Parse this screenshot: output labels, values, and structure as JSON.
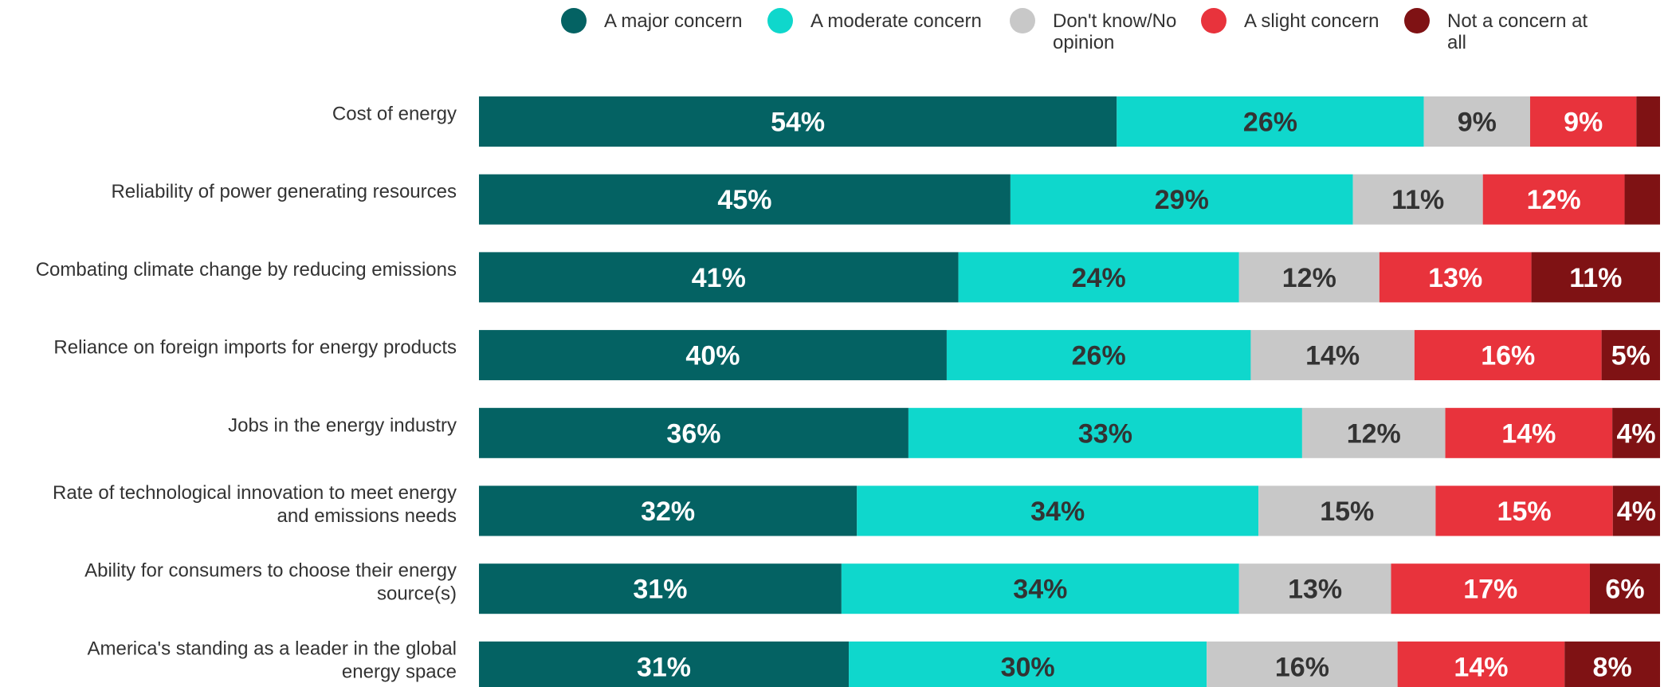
{
  "chart_data": {
    "type": "bar",
    "orientation": "horizontal",
    "stacked": true,
    "title": "",
    "xlabel": "",
    "ylabel": "",
    "legend_position": "top",
    "grid": false,
    "categories": [
      "Cost of energy",
      "Reliability of power generating resources",
      "Combating climate change by reducing emissions",
      "Reliance on foreign imports for energy products",
      "Jobs in the energy industry",
      "Rate of technological innovation to meet energy and emissions needs",
      "Ability for consumers to choose their energy source(s)",
      "America's standing as a leader in the global energy space"
    ],
    "series": [
      {
        "name": "A major concern",
        "color": "#046263",
        "label_color": "#ffffff",
        "values": [
          54,
          45,
          41,
          40,
          36,
          32,
          31,
          31
        ],
        "labels": [
          "54%",
          "45%",
          "41%",
          "40%",
          "36%",
          "32%",
          "31%",
          "31%"
        ]
      },
      {
        "name": "A moderate concern",
        "color": "#0fd7cc",
        "label_color": "#333333",
        "values": [
          26,
          29,
          24,
          26,
          33,
          34,
          34,
          30
        ],
        "labels": [
          "26%",
          "29%",
          "24%",
          "26%",
          "33%",
          "34%",
          "34%",
          "30%"
        ]
      },
      {
        "name": "Don't know/No opinion",
        "color": "#c8c8c8",
        "label_color": "#333333",
        "values": [
          9,
          11,
          12,
          14,
          12,
          15,
          13,
          16
        ],
        "labels": [
          "9%",
          "11%",
          "12%",
          "14%",
          "12%",
          "15%",
          "13%",
          "16%"
        ]
      },
      {
        "name": "A slight concern",
        "color": "#e8333c",
        "label_color": "#ffffff",
        "values": [
          9,
          12,
          13,
          16,
          14,
          15,
          17,
          14
        ],
        "labels": [
          "9%",
          "12%",
          "13%",
          "16%",
          "14%",
          "15%",
          "17%",
          "14%"
        ]
      },
      {
        "name": "Not a concern at all",
        "color": "#7f1214",
        "label_color": "#ffffff",
        "values": [
          2,
          3,
          11,
          5,
          4,
          4,
          6,
          8
        ],
        "labels": [
          "",
          "",
          "11%",
          "5%",
          "4%",
          "4%",
          "6%",
          "8%"
        ]
      }
    ]
  }
}
